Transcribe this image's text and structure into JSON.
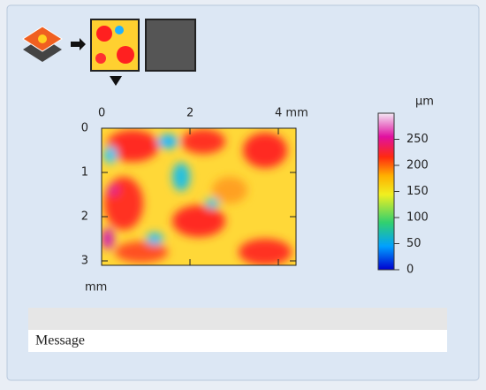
{
  "plot": {
    "xticks": [
      0,
      2,
      {
        "value": 4,
        "label": "4 mm"
      }
    ],
    "xlim": [
      0,
      4.4
    ],
    "yticks": [
      0,
      1,
      2,
      3
    ],
    "ylim": [
      0,
      3.1
    ],
    "ylabel": "mm"
  },
  "colorbar": {
    "label": "µm",
    "ticks": [
      0,
      50,
      100,
      150,
      200,
      250
    ],
    "lim": [
      0,
      300
    ]
  },
  "status": {
    "message": "Message"
  }
}
